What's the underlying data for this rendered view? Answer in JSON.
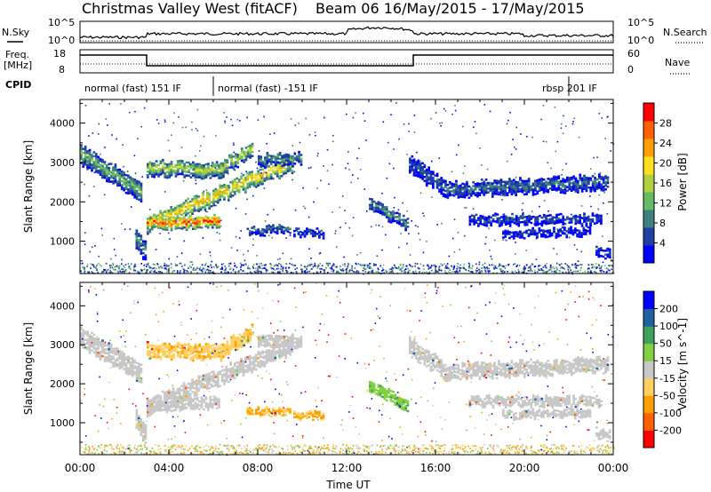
{
  "header": {
    "station": "Christmas Valley West (fitACF)",
    "beam_date": "Beam 06 16/May/2015 - 17/May/2015"
  },
  "top_panels": {
    "nsky_label": "N.Sky",
    "nsky_ticks": [
      "10^5",
      "10^0"
    ],
    "nsearch_label": "N.Search",
    "nsearch_ticks": [
      "10^5",
      "10^0"
    ],
    "freq_label_1": "Freq.",
    "freq_label_2": "[MHz]",
    "freq_ticks": [
      "18",
      "8"
    ],
    "nave_label": "Nave",
    "nave_ticks": [
      "60",
      "0"
    ],
    "cpid_label": "CPID",
    "cpid_segments": [
      {
        "start": 0.0,
        "end": 6.0,
        "label": "normal (fast) 151 IF"
      },
      {
        "start": 6.0,
        "end": 22.0,
        "label": "normal (fast) -151 IF"
      },
      {
        "start": 22.0,
        "end": 24.0,
        "label": "rbsp 201 IF"
      }
    ]
  },
  "x_axis": {
    "label": "Time UT",
    "ticks": [
      "00:00",
      "04:00",
      "08:00",
      "12:00",
      "16:00",
      "20:00",
      "00:00"
    ],
    "range_hours": [
      0,
      24
    ]
  },
  "chart_data": [
    {
      "type": "heatmap",
      "name": "power",
      "ylabel": "Slant Range [km]",
      "yticks": [
        1000,
        2000,
        3000,
        4000
      ],
      "ylim": [
        180,
        4600
      ],
      "colorbar_label": "Power [dB]",
      "colorbar_ticks": [
        "28",
        "24",
        "20",
        "16",
        "12",
        "8",
        "4"
      ],
      "colors": [
        "#0000ff",
        "#1f3fa6",
        "#3f7f7f",
        "#66bb66",
        "#b0d040",
        "#ffe020",
        "#ffa000",
        "#ff6000",
        "#ff0000"
      ],
      "bands": [
        {
          "t": [
            0.0,
            2.8
          ],
          "r": [
            3250,
            2300
          ],
          "w": 500,
          "p": 14
        },
        {
          "t": [
            2.5,
            3.0
          ],
          "r": [
            1150,
            700
          ],
          "w": 500,
          "p": 12
        },
        {
          "t": [
            3.0,
            9.6
          ],
          "r": [
            1450,
            3050
          ],
          "w": 420,
          "p": 22
        },
        {
          "t": [
            3.0,
            6.3
          ],
          "r": [
            1500,
            1550
          ],
          "w": 300,
          "p": 28
        },
        {
          "t": [
            3.0,
            6.5
          ],
          "r": [
            2900,
            2850
          ],
          "w": 380,
          "p": 18
        },
        {
          "t": [
            6.3,
            7.8
          ],
          "r": [
            2900,
            3400
          ],
          "w": 360,
          "p": 18
        },
        {
          "t": [
            8.0,
            10.0
          ],
          "r": [
            3100,
            3150
          ],
          "w": 300,
          "p": 12
        },
        {
          "t": [
            7.5,
            9.5
          ],
          "r": [
            1300,
            1350
          ],
          "w": 200,
          "p": 10
        },
        {
          "t": [
            9.6,
            11.0
          ],
          "r": [
            1250,
            1250
          ],
          "w": 180,
          "p": 8
        },
        {
          "t": [
            13.0,
            14.8
          ],
          "r": [
            2000,
            1450
          ],
          "w": 300,
          "p": 12
        },
        {
          "t": [
            14.8,
            16.5
          ],
          "r": [
            3000,
            2350
          ],
          "w": 450,
          "p": 8
        },
        {
          "t": [
            16.5,
            23.8
          ],
          "r": [
            2350,
            2550
          ],
          "w": 380,
          "p": 10
        },
        {
          "t": [
            17.5,
            23.5
          ],
          "r": [
            1600,
            1600
          ],
          "w": 250,
          "p": 8
        },
        {
          "t": [
            19.0,
            23.0
          ],
          "r": [
            1250,
            1300
          ],
          "w": 200,
          "p": 6
        },
        {
          "t": [
            23.2,
            23.9
          ],
          "r": [
            800,
            700
          ],
          "w": 250,
          "p": 8
        }
      ]
    },
    {
      "type": "heatmap",
      "name": "velocity",
      "ylabel": "Slant Range [km]",
      "yticks": [
        1000,
        2000,
        3000,
        4000
      ],
      "ylim": [
        180,
        4600
      ],
      "colorbar_label": "Velocity [m s^-1]",
      "colorbar_ticks": [
        "200",
        "100",
        "50",
        "15",
        "-15",
        "-50",
        "-100",
        "-200"
      ],
      "colors": [
        "#ff0000",
        "#ff6000",
        "#ffa000",
        "#ffd060",
        "#c8c8c8",
        "#80d040",
        "#40a060",
        "#2060a0",
        "#0000ff"
      ],
      "bands": [
        {
          "t": [
            0.0,
            2.8
          ],
          "r": [
            3250,
            2300
          ],
          "w": 500,
          "v": 0
        },
        {
          "t": [
            2.5,
            3.0
          ],
          "r": [
            1150,
            700
          ],
          "w": 500,
          "v": 0
        },
        {
          "t": [
            3.0,
            9.6
          ],
          "r": [
            1450,
            3050
          ],
          "w": 420,
          "v": 0
        },
        {
          "t": [
            3.0,
            6.3
          ],
          "r": [
            1500,
            1550
          ],
          "w": 300,
          "v": 0
        },
        {
          "t": [
            3.0,
            6.5
          ],
          "r": [
            2900,
            2850
          ],
          "w": 380,
          "v": -40
        },
        {
          "t": [
            6.3,
            7.8
          ],
          "r": [
            2900,
            3400
          ],
          "w": 360,
          "v": -40
        },
        {
          "t": [
            8.0,
            10.0
          ],
          "r": [
            3100,
            3150
          ],
          "w": 300,
          "v": 0
        },
        {
          "t": [
            7.5,
            9.5
          ],
          "r": [
            1300,
            1350
          ],
          "w": 200,
          "v": -50
        },
        {
          "t": [
            9.6,
            11.0
          ],
          "r": [
            1250,
            1250
          ],
          "w": 180,
          "v": -50
        },
        {
          "t": [
            13.0,
            14.8
          ],
          "r": [
            2000,
            1450
          ],
          "w": 300,
          "v": 40
        },
        {
          "t": [
            14.8,
            16.5
          ],
          "r": [
            3000,
            2350
          ],
          "w": 450,
          "v": 0
        },
        {
          "t": [
            16.5,
            23.8
          ],
          "r": [
            2350,
            2550
          ],
          "w": 380,
          "v": 0
        },
        {
          "t": [
            17.5,
            23.5
          ],
          "r": [
            1600,
            1600
          ],
          "w": 250,
          "v": 0
        },
        {
          "t": [
            19.0,
            23.0
          ],
          "r": [
            1250,
            1300
          ],
          "w": 200,
          "v": 0
        },
        {
          "t": [
            23.2,
            23.9
          ],
          "r": [
            800,
            700
          ],
          "w": 250,
          "v": 0
        }
      ]
    }
  ]
}
